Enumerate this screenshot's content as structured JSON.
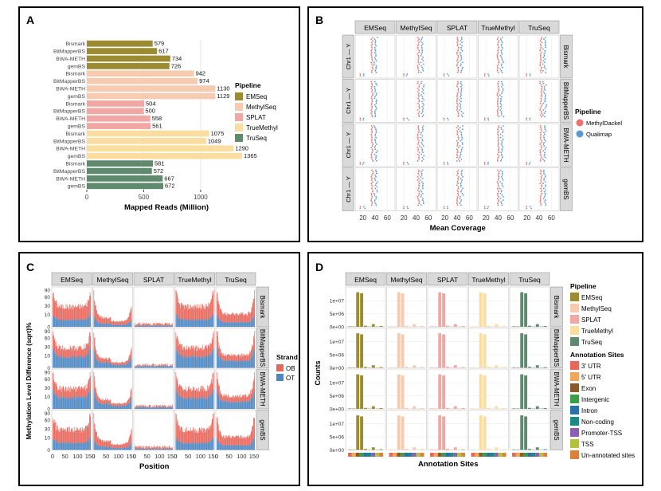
{
  "panels": {
    "a": "A",
    "b": "B",
    "c": "C",
    "d": "D"
  },
  "chart_data": [
    {
      "type": "bar",
      "title": "",
      "xlabel": "Mapped Reads (Million)",
      "ylabel": "",
      "xlim": [
        0,
        1400
      ],
      "xticks": [
        "0",
        "500",
        "1000"
      ],
      "categories": [
        "Bismark",
        "BitMapperBS",
        "BWA-METH",
        "gemBS",
        "Bismark",
        "BitMapperBS",
        "BWA-METH",
        "gemBS",
        "Bismark",
        "BitMapperBS",
        "BWA-METH",
        "gemBS",
        "Bismark",
        "BitMapperBS",
        "BWA-METH",
        "gemBS",
        "Bismark",
        "BitMapperBS",
        "BWA-METH",
        "gemBS"
      ],
      "values": [
        579,
        617,
        734,
        726,
        942,
        974,
        1130,
        1129,
        504,
        500,
        558,
        561,
        1075,
        1049,
        1290,
        1365,
        581,
        572,
        667,
        672
      ],
      "group_of_bar": [
        0,
        0,
        0,
        0,
        1,
        1,
        1,
        1,
        2,
        2,
        2,
        2,
        3,
        3,
        3,
        3,
        4,
        4,
        4,
        4
      ],
      "legend_title": "Pipeline",
      "legend": [
        "EMSeq",
        "MethylSeq",
        "SPLAT",
        "TrueMethyl",
        "TruSeq"
      ],
      "colors": [
        "#9c8b30",
        "#f6cbb0",
        "#f1a7a3",
        "#fbdda0",
        "#5f8a6e"
      ]
    },
    {
      "type": "scatter",
      "title": "",
      "xlabel": "Mean Coverage",
      "ylabel": "",
      "xticks": [
        "20",
        "40",
        "60"
      ],
      "xlim": [
        10,
        70
      ],
      "columns": [
        "EMSeq",
        "MethylSeq",
        "SPLAT",
        "TrueMethyl",
        "TruSeq"
      ],
      "rows": [
        "Bismark",
        "BitMapperBS",
        "BWA-METH",
        "gemBS"
      ],
      "ylabel_strip": "Chr1 — Y",
      "legend_title": "Pipeline",
      "legend": [
        "MethylDackel",
        "Qualimap"
      ],
      "colors": [
        "#e8746c",
        "#5b9ad1"
      ],
      "column_center": [
        35,
        44,
        41,
        40,
        43
      ],
      "qualimap_offset": 6
    },
    {
      "type": "area",
      "title": "",
      "xlabel": "Position",
      "ylabel": "Methylation Level Difference (sqrt)%",
      "yticks": [
        "0",
        "10",
        "30",
        "60",
        "90"
      ],
      "xticks": [
        "0",
        "50",
        "100",
        "150"
      ],
      "xlim": [
        0,
        150
      ],
      "columns": [
        "EMSeq",
        "MethylSeq",
        "SPLAT",
        "TrueMethyl",
        "TruSeq"
      ],
      "rows": [
        "Bismark",
        "BitMapperBS",
        "BWA-METH",
        "gemBS"
      ],
      "legend_title": "Strand",
      "legend": [
        "OB",
        "OT"
      ],
      "colors": [
        "#e8675b",
        "#4d87c3"
      ],
      "base_level": [
        0.55,
        0.25,
        0.08,
        0.55,
        0.35
      ]
    },
    {
      "type": "bar",
      "title": "",
      "xlabel": "Annotation Sites",
      "ylabel": "Counts",
      "yticks": [
        "0e+00",
        "5e+06",
        "1e+07"
      ],
      "columns": [
        "EMSeq",
        "MethylSeq",
        "SPLAT",
        "TrueMethyl",
        "TruSeq"
      ],
      "rows": [
        "Bismark",
        "BitMapperBS",
        "BWA-METH",
        "gemBS"
      ],
      "categories": [
        "3' UTR",
        "5' UTR",
        "Exon",
        "Intergenic",
        "Intron",
        "Non-coding",
        "Promoter-TSS",
        "TSS",
        "Un-annotated sites"
      ],
      "values": [
        200000,
        150000,
        13200000,
        12800000,
        400000,
        100000,
        1000000,
        100000,
        300000
      ],
      "ylim": [
        0,
        14000000
      ],
      "legend_title": "Pipeline",
      "legend": [
        "EMSeq",
        "MethylSeq",
        "SPLAT",
        "TrueMethyl",
        "TruSeq"
      ],
      "colors": [
        "#9c8b30",
        "#f6cbb0",
        "#f1a7a3",
        "#fbdda0",
        "#5f8a6e"
      ],
      "legend2_title": "Annotation Sites",
      "legend2": [
        "3' UTR",
        "5' UTR",
        "Exon",
        "Intergenic",
        "Intron",
        "Non-coding",
        "Promoter-TSS",
        "TSS",
        "Un-annotated sites"
      ],
      "colors2": [
        "#e8675b",
        "#f2a65a",
        "#8a5a2b",
        "#3e9b47",
        "#2a6fa8",
        "#1b8a84",
        "#8c5fb5",
        "#b2c23e",
        "#d9823b"
      ]
    }
  ]
}
